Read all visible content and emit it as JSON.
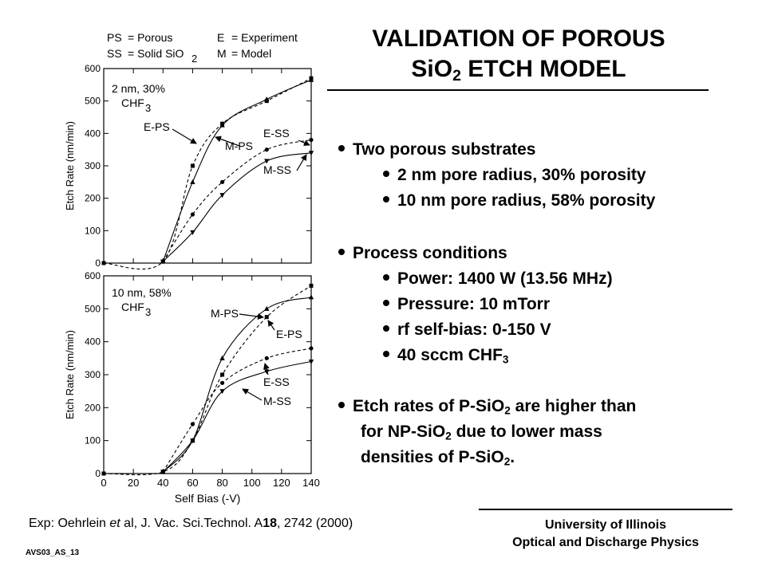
{
  "title": {
    "line1": "VALIDATION OF POROUS",
    "line2a": "SiO",
    "line2sub": "2",
    "line2b": " ETCH MODEL"
  },
  "legend": {
    "ps_key": "PS",
    "ps_val": "= Porous",
    "ss_key": "SS",
    "ss_val": "= Solid SiO",
    "ss_sub": "2",
    "e_key": "E",
    "e_val": "= Experiment",
    "m_key": "M",
    "m_val": "= Model"
  },
  "bullets": {
    "b1": "Two porous substrates",
    "b1a": "2 nm pore radius, 30% porosity",
    "b1b": "10 nm pore radius, 58% porosity",
    "b2": "Process conditions",
    "b2a": "Power: 1400 W (13.56 MHz)",
    "b2b": "Pressure: 10 mTorr",
    "b2c": "rf self-bias: 0-150 V",
    "b2d_pre": "40 sccm CHF",
    "b2d_sub": "3",
    "b3_l1a": "Etch rates of P-SiO",
    "b3_l1sub": "2",
    "b3_l1b": " are higher than",
    "b3_l2a": "for NP-SiO",
    "b3_l2sub": "2",
    "b3_l2b": " due to lower mass",
    "b3_l3a": "densities of P-SiO",
    "b3_l3sub": "2",
    "b3_l3b": "."
  },
  "citation": {
    "pre": "Exp: Oehrlein ",
    "etal": "et",
    "post": " al, J. Vac. Sci.Technol. A",
    "vol": "18",
    "tail": ", 2742 (2000)"
  },
  "footer": {
    "univ1": "University of Illinois",
    "univ2": "Optical and Discharge Physics",
    "id": "AVS03_AS_13"
  },
  "chart_data": [
    {
      "type": "line",
      "condition_line1": "2 nm, 30%",
      "condition_line2": "CHF",
      "condition_sub": "3",
      "ylabel": "Etch Rate (nm/min)",
      "xlabel": "",
      "xlim": [
        0,
        140
      ],
      "ylim": [
        0,
        600
      ],
      "yticks": [
        0,
        100,
        200,
        300,
        400,
        500,
        600
      ],
      "xticks": [
        0,
        20,
        40,
        60,
        80,
        100,
        120,
        140
      ],
      "series": [
        {
          "name": "E-PS",
          "kind": "experiment",
          "marker": "square",
          "x": [
            0,
            40,
            60,
            80,
            110,
            140
          ],
          "y": [
            0,
            5,
            300,
            430,
            500,
            570
          ]
        },
        {
          "name": "M-PS",
          "kind": "model",
          "marker": "triangle-up",
          "x": [
            40,
            60,
            80,
            110,
            140
          ],
          "y": [
            5,
            250,
            425,
            505,
            565
          ]
        },
        {
          "name": "E-SS",
          "kind": "experiment",
          "marker": "circle",
          "x": [
            40,
            60,
            80,
            110,
            140
          ],
          "y": [
            5,
            150,
            250,
            350,
            380
          ]
        },
        {
          "name": "M-SS",
          "kind": "model",
          "marker": "triangle-down",
          "x": [
            40,
            60,
            80,
            110,
            140
          ],
          "y": [
            5,
            95,
            210,
            315,
            340
          ]
        }
      ],
      "annotations": [
        "E-PS",
        "M-PS",
        "E-SS",
        "M-SS"
      ]
    },
    {
      "type": "line",
      "condition_line1": "10 nm, 58%",
      "condition_line2": "CHF",
      "condition_sub": "3",
      "ylabel": "Etch Rate (nm/min)",
      "xlabel": "Self Bias (-V)",
      "xlim": [
        0,
        140
      ],
      "ylim": [
        0,
        600
      ],
      "yticks": [
        0,
        100,
        200,
        300,
        400,
        500,
        600
      ],
      "xticks": [
        0,
        20,
        40,
        60,
        80,
        100,
        120,
        140
      ],
      "series": [
        {
          "name": "E-PS",
          "kind": "experiment",
          "marker": "square",
          "x": [
            0,
            40,
            60,
            80,
            110,
            140
          ],
          "y": [
            0,
            5,
            100,
            300,
            475,
            570
          ]
        },
        {
          "name": "M-PS",
          "kind": "model",
          "marker": "triangle-up",
          "x": [
            40,
            60,
            80,
            110,
            140
          ],
          "y": [
            5,
            100,
            350,
            500,
            535
          ]
        },
        {
          "name": "E-SS",
          "kind": "experiment",
          "marker": "circle",
          "x": [
            40,
            60,
            80,
            110,
            140
          ],
          "y": [
            5,
            150,
            275,
            350,
            380
          ]
        },
        {
          "name": "M-SS",
          "kind": "model",
          "marker": "triangle-down",
          "x": [
            40,
            60,
            80,
            110,
            140
          ],
          "y": [
            5,
            100,
            250,
            310,
            340
          ]
        }
      ],
      "annotations": [
        "M-PS",
        "E-PS",
        "E-SS",
        "M-SS"
      ]
    }
  ]
}
